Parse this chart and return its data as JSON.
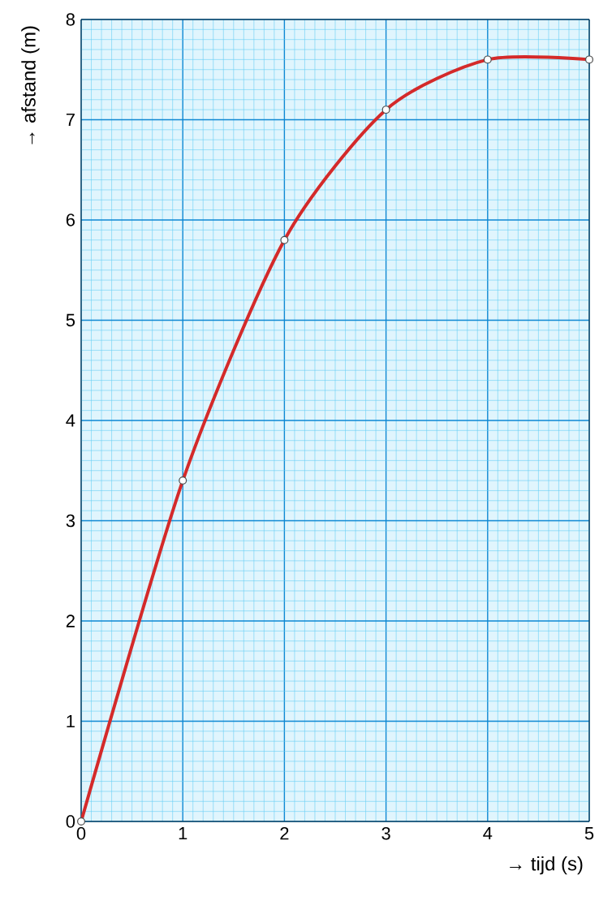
{
  "chart_data": {
    "type": "line",
    "xlabel": "→ tijd (s)",
    "ylabel": "→ afstand (m)",
    "x": [
      0,
      1,
      2,
      3,
      4,
      5
    ],
    "series": [
      {
        "color": "#d42a2a",
        "values": [
          0,
          3.4,
          5.8,
          7.1,
          7.6,
          7.6
        ]
      }
    ],
    "xlim": [
      0,
      5
    ],
    "ylim": [
      0,
      8
    ],
    "xticks": [
      0,
      {
        "value": 0.1,
        "label": null
      },
      {
        "value": 0.2,
        "label": null
      },
      {
        "value": 0.3,
        "label": null
      },
      {
        "value": 0.4,
        "label": null
      },
      {
        "value": 0.5,
        "label": null
      },
      {
        "value": 0.6,
        "label": null
      },
      {
        "value": 0.7,
        "label": null
      },
      {
        "value": 0.8,
        "label": null
      },
      {
        "value": 0.9,
        "label": null
      },
      1,
      {
        "value": 1.1,
        "label": null
      },
      {
        "value": 1.2,
        "label": null
      },
      {
        "value": 1.3,
        "label": null
      },
      {
        "value": 1.4,
        "label": null
      },
      {
        "value": 1.5,
        "label": null
      },
      {
        "value": 1.6,
        "label": null
      },
      {
        "value": 1.7,
        "label": null
      },
      {
        "value": 1.8,
        "label": null
      },
      {
        "value": 1.9,
        "label": null
      },
      2,
      {
        "value": 2.1,
        "label": null
      },
      {
        "value": 2.2,
        "label": null
      },
      {
        "value": 2.3,
        "label": null
      },
      {
        "value": 2.4,
        "label": null
      },
      {
        "value": 2.5,
        "label": null
      },
      {
        "value": 2.6,
        "label": null
      },
      {
        "value": 2.7,
        "label": null
      },
      {
        "value": 2.8,
        "label": null
      },
      {
        "value": 2.9,
        "label": null
      },
      3,
      {
        "value": 3.1,
        "label": null
      },
      {
        "value": 3.2,
        "label": null
      },
      {
        "value": 3.3,
        "label": null
      },
      {
        "value": 3.4,
        "label": null
      },
      {
        "value": 3.5,
        "label": null
      },
      {
        "value": 3.6,
        "label": null
      },
      {
        "value": 3.7,
        "label": null
      },
      {
        "value": 3.8,
        "label": null
      },
      {
        "value": 3.9,
        "label": null
      },
      4,
      {
        "value": 4.1,
        "label": null
      },
      {
        "value": 4.2,
        "label": null
      },
      {
        "value": 4.3,
        "label": null
      },
      {
        "value": 4.4,
        "label": null
      },
      {
        "value": 4.5,
        "label": null
      },
      {
        "value": 4.6,
        "label": null
      },
      {
        "value": 4.7,
        "label": null
      },
      {
        "value": 4.8,
        "label": null
      },
      {
        "value": 4.9,
        "label": null
      },
      5
    ],
    "yticks": [
      0,
      {
        "value": 0.1,
        "label": null
      },
      {
        "value": 0.2,
        "label": null
      },
      {
        "value": 0.3,
        "label": null
      },
      {
        "value": 0.4,
        "label": null
      },
      {
        "value": 0.5,
        "label": null
      },
      {
        "value": 0.6,
        "label": null
      },
      {
        "value": 0.7,
        "label": null
      },
      {
        "value": 0.8,
        "label": null
      },
      {
        "value": 0.9,
        "label": null
      },
      1,
      {
        "value": 1.1,
        "label": null
      },
      {
        "value": 1.2,
        "label": null
      },
      {
        "value": 1.3,
        "label": null
      },
      {
        "value": 1.4,
        "label": null
      },
      {
        "value": 1.5,
        "label": null
      },
      {
        "value": 1.6,
        "label": null
      },
      {
        "value": 1.7,
        "label": null
      },
      {
        "value": 1.8,
        "label": null
      },
      {
        "value": 1.9,
        "label": null
      },
      2,
      {
        "value": 2.1,
        "label": null
      },
      {
        "value": 2.2,
        "label": null
      },
      {
        "value": 2.3,
        "label": null
      },
      {
        "value": 2.4,
        "label": null
      },
      {
        "value": 2.5,
        "label": null
      },
      {
        "value": 2.6,
        "label": null
      },
      {
        "value": 2.7,
        "label": null
      },
      {
        "value": 2.8,
        "label": null
      },
      {
        "value": 2.9,
        "label": null
      },
      3,
      {
        "value": 3.1,
        "label": null
      },
      {
        "value": 3.2,
        "label": null
      },
      {
        "value": 3.3,
        "label": null
      },
      {
        "value": 3.4,
        "label": null
      },
      {
        "value": 3.5,
        "label": null
      },
      {
        "value": 3.6,
        "label": null
      },
      {
        "value": 3.7,
        "label": null
      },
      {
        "value": 3.8,
        "label": null
      },
      {
        "value": 3.9,
        "label": null
      },
      4,
      {
        "value": 4.1,
        "label": null
      },
      {
        "value": 4.2,
        "label": null
      },
      {
        "value": 4.3,
        "label": null
      },
      {
        "value": 4.4,
        "label": null
      },
      {
        "value": 4.5,
        "label": null
      },
      {
        "value": 4.6,
        "label": null
      },
      {
        "value": 4.7,
        "label": null
      },
      {
        "value": 4.8,
        "label": null
      },
      {
        "value": 4.9,
        "label": null
      },
      5,
      {
        "value": 5.1,
        "label": null
      },
      {
        "value": 5.2,
        "label": null
      },
      {
        "value": 5.3,
        "label": null
      },
      {
        "value": 5.4,
        "label": null
      },
      {
        "value": 5.5,
        "label": null
      },
      {
        "value": 5.6,
        "label": null
      },
      {
        "value": 5.7,
        "label": null
      },
      {
        "value": 5.8,
        "label": null
      },
      {
        "value": 5.9,
        "label": null
      },
      6,
      {
        "value": 6.1,
        "label": null
      },
      {
        "value": 6.2,
        "label": null
      },
      {
        "value": 6.3,
        "label": null
      },
      {
        "value": 6.4,
        "label": null
      },
      {
        "value": 6.5,
        "label": null
      },
      {
        "value": 6.6,
        "label": null
      },
      {
        "value": 6.7,
        "label": null
      },
      {
        "value": 6.8,
        "label": null
      },
      {
        "value": 6.9,
        "label": null
      },
      7,
      {
        "value": 7.1,
        "label": null
      },
      {
        "value": 7.2,
        "label": null
      },
      {
        "value": 7.3,
        "label": null
      },
      {
        "value": 7.4,
        "label": null
      },
      {
        "value": 7.5,
        "label": null
      },
      {
        "value": 7.6,
        "label": null
      },
      {
        "value": 7.7,
        "label": null
      },
      {
        "value": 7.8,
        "label": null
      },
      {
        "value": 7.9,
        "label": null
      },
      8
    ],
    "grid": true,
    "marker": "circle",
    "line_style": "solid"
  }
}
